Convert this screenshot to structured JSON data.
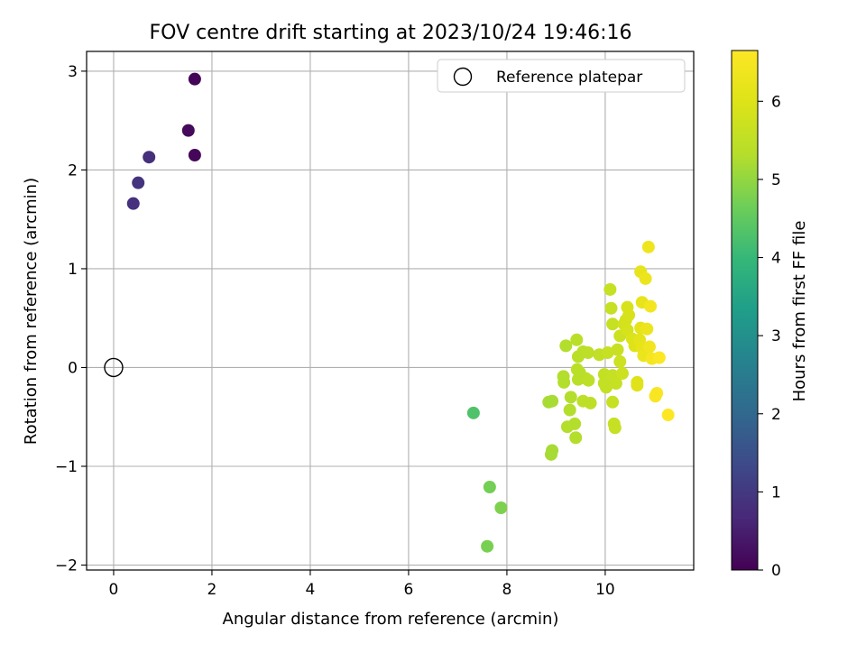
{
  "chart_data": {
    "type": "scatter",
    "title": "FOV centre drift starting at 2023/10/24 19:46:16",
    "xlabel": "Angular distance from reference (arcmin)",
    "ylabel": "Rotation from reference (arcmin)",
    "xlim": [
      -0.55,
      11.8
    ],
    "ylim": [
      -2.05,
      3.2
    ],
    "x_ticks": [
      0,
      2,
      4,
      6,
      8,
      10
    ],
    "y_ticks": [
      -2,
      -1,
      0,
      1,
      2,
      3
    ],
    "grid": true,
    "legend": {
      "position": "top-right",
      "entries": [
        "Reference platepar"
      ]
    },
    "reference_point": {
      "x": 0,
      "y": 0
    },
    "colorbar": {
      "label": "Hours from first FF file",
      "colormap": "viridis",
      "range": [
        0,
        6.65
      ],
      "ticks": [
        0,
        1,
        2,
        3,
        4,
        5,
        6
      ]
    },
    "points": [
      {
        "x": 1.65,
        "y": 2.92,
        "c": 0.05
      },
      {
        "x": 1.52,
        "y": 2.4,
        "c": 0.15
      },
      {
        "x": 1.65,
        "y": 2.15,
        "c": 0.1
      },
      {
        "x": 0.72,
        "y": 2.13,
        "c": 0.8
      },
      {
        "x": 0.5,
        "y": 1.87,
        "c": 0.9
      },
      {
        "x": 0.4,
        "y": 1.66,
        "c": 0.85
      },
      {
        "x": 7.32,
        "y": -0.46,
        "c": 4.3
      },
      {
        "x": 7.65,
        "y": -1.21,
        "c": 4.7
      },
      {
        "x": 7.88,
        "y": -1.42,
        "c": 4.8
      },
      {
        "x": 7.6,
        "y": -1.81,
        "c": 4.75
      },
      {
        "x": 8.9,
        "y": -0.88,
        "c": 5.2
      },
      {
        "x": 8.92,
        "y": -0.84,
        "c": 5.2
      },
      {
        "x": 8.85,
        "y": -0.35,
        "c": 5.2
      },
      {
        "x": 8.92,
        "y": -0.34,
        "c": 5.2
      },
      {
        "x": 9.15,
        "y": -0.09,
        "c": 5.3
      },
      {
        "x": 9.16,
        "y": -0.15,
        "c": 5.3
      },
      {
        "x": 9.2,
        "y": 0.22,
        "c": 5.3
      },
      {
        "x": 9.3,
        "y": -0.3,
        "c": 5.3
      },
      {
        "x": 9.28,
        "y": -0.43,
        "c": 5.3
      },
      {
        "x": 9.23,
        "y": -0.6,
        "c": 5.3
      },
      {
        "x": 9.38,
        "y": -0.57,
        "c": 5.3
      },
      {
        "x": 9.4,
        "y": -0.71,
        "c": 5.3
      },
      {
        "x": 9.42,
        "y": 0.28,
        "c": 5.4
      },
      {
        "x": 9.45,
        "y": 0.11,
        "c": 5.4
      },
      {
        "x": 9.43,
        "y": -0.02,
        "c": 5.4
      },
      {
        "x": 9.48,
        "y": -0.05,
        "c": 5.4
      },
      {
        "x": 9.45,
        "y": -0.12,
        "c": 5.4
      },
      {
        "x": 9.55,
        "y": 0.16,
        "c": 5.4
      },
      {
        "x": 9.6,
        "y": -0.11,
        "c": 5.4
      },
      {
        "x": 9.65,
        "y": 0.15,
        "c": 5.45
      },
      {
        "x": 9.66,
        "y": -0.13,
        "c": 5.45
      },
      {
        "x": 9.55,
        "y": -0.34,
        "c": 5.45
      },
      {
        "x": 9.7,
        "y": -0.36,
        "c": 5.45
      },
      {
        "x": 9.88,
        "y": 0.13,
        "c": 5.5
      },
      {
        "x": 9.98,
        "y": -0.07,
        "c": 5.55
      },
      {
        "x": 9.98,
        "y": -0.16,
        "c": 5.55
      },
      {
        "x": 10.02,
        "y": -0.2,
        "c": 5.55
      },
      {
        "x": 10.05,
        "y": 0.15,
        "c": 5.6
      },
      {
        "x": 10.1,
        "y": 0.79,
        "c": 5.6
      },
      {
        "x": 10.12,
        "y": 0.6,
        "c": 5.6
      },
      {
        "x": 10.15,
        "y": 0.44,
        "c": 5.6
      },
      {
        "x": 10.15,
        "y": -0.08,
        "c": 5.6
      },
      {
        "x": 10.15,
        "y": -0.35,
        "c": 5.6
      },
      {
        "x": 10.18,
        "y": -0.57,
        "c": 5.6
      },
      {
        "x": 10.2,
        "y": -0.61,
        "c": 5.6
      },
      {
        "x": 10.2,
        "y": -0.1,
        "c": 5.6
      },
      {
        "x": 10.22,
        "y": -0.16,
        "c": 5.6
      },
      {
        "x": 10.25,
        "y": 0.18,
        "c": 5.65
      },
      {
        "x": 10.3,
        "y": 0.32,
        "c": 5.7
      },
      {
        "x": 10.3,
        "y": 0.06,
        "c": 5.7
      },
      {
        "x": 10.35,
        "y": -0.06,
        "c": 5.7
      },
      {
        "x": 10.38,
        "y": 0.44,
        "c": 5.8
      },
      {
        "x": 10.42,
        "y": 0.48,
        "c": 5.8
      },
      {
        "x": 10.45,
        "y": 0.61,
        "c": 5.9
      },
      {
        "x": 10.45,
        "y": 0.38,
        "c": 5.85
      },
      {
        "x": 10.48,
        "y": 0.53,
        "c": 5.9
      },
      {
        "x": 10.55,
        "y": 0.29,
        "c": 5.95
      },
      {
        "x": 10.6,
        "y": 0.22,
        "c": 6.0
      },
      {
        "x": 10.65,
        "y": -0.15,
        "c": 6.0
      },
      {
        "x": 10.65,
        "y": -0.18,
        "c": 6.05
      },
      {
        "x": 10.7,
        "y": 0.28,
        "c": 6.1
      },
      {
        "x": 10.72,
        "y": 0.4,
        "c": 6.15
      },
      {
        "x": 10.72,
        "y": 0.97,
        "c": 6.2
      },
      {
        "x": 10.75,
        "y": 0.66,
        "c": 6.2
      },
      {
        "x": 10.75,
        "y": 0.2,
        "c": 6.2
      },
      {
        "x": 10.78,
        "y": 0.12,
        "c": 6.25
      },
      {
        "x": 10.82,
        "y": 0.9,
        "c": 6.3
      },
      {
        "x": 10.85,
        "y": 0.39,
        "c": 6.3
      },
      {
        "x": 10.88,
        "y": 1.22,
        "c": 6.35
      },
      {
        "x": 10.9,
        "y": 0.21,
        "c": 6.4
      },
      {
        "x": 10.92,
        "y": 0.62,
        "c": 6.45
      },
      {
        "x": 10.95,
        "y": 0.09,
        "c": 6.5
      },
      {
        "x": 11.02,
        "y": -0.29,
        "c": 6.55
      },
      {
        "x": 11.05,
        "y": -0.26,
        "c": 6.55
      },
      {
        "x": 11.1,
        "y": 0.1,
        "c": 6.6
      },
      {
        "x": 11.28,
        "y": -0.48,
        "c": 6.65
      }
    ]
  }
}
